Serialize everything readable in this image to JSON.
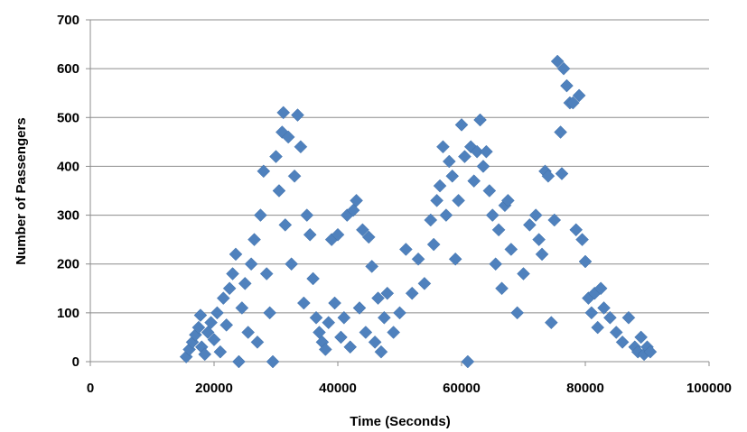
{
  "chart_data": {
    "type": "scatter",
    "title": "",
    "xlabel": "Time (Seconds)",
    "ylabel": "Number of Passengers",
    "xlim": [
      0,
      100000
    ],
    "ylim": [
      0,
      700
    ],
    "xticks": [
      0,
      20000,
      40000,
      60000,
      80000,
      100000
    ],
    "yticks": [
      0,
      100,
      200,
      300,
      400,
      500,
      600,
      700
    ],
    "xtick_labels": [
      "0",
      "20000",
      "40000",
      "60000",
      "80000",
      "100000"
    ],
    "ytick_labels": [
      "0",
      "100",
      "200",
      "300",
      "400",
      "500",
      "600",
      "700"
    ],
    "grid": "horizontal",
    "legend": "none",
    "marker": "diamond",
    "marker_color": "#4F81BD",
    "series": [
      {
        "points": [
          [
            15500,
            10
          ],
          [
            16000,
            25
          ],
          [
            16500,
            40
          ],
          [
            17000,
            55
          ],
          [
            17500,
            70
          ],
          [
            17800,
            95
          ],
          [
            18000,
            30
          ],
          [
            18500,
            15
          ],
          [
            19000,
            60
          ],
          [
            19500,
            80
          ],
          [
            20000,
            45
          ],
          [
            20500,
            100
          ],
          [
            21000,
            20
          ],
          [
            21500,
            130
          ],
          [
            22000,
            75
          ],
          [
            22500,
            150
          ],
          [
            23000,
            180
          ],
          [
            23500,
            220
          ],
          [
            24000,
            0
          ],
          [
            24500,
            110
          ],
          [
            25000,
            160
          ],
          [
            25500,
            60
          ],
          [
            26000,
            200
          ],
          [
            26500,
            250
          ],
          [
            27000,
            40
          ],
          [
            27500,
            300
          ],
          [
            28000,
            390
          ],
          [
            28500,
            180
          ],
          [
            29000,
            100
          ],
          [
            29500,
            0
          ],
          [
            30000,
            420
          ],
          [
            30500,
            350
          ],
          [
            31000,
            470
          ],
          [
            31200,
            510
          ],
          [
            31500,
            280
          ],
          [
            32000,
            460
          ],
          [
            32500,
            200
          ],
          [
            33000,
            380
          ],
          [
            33500,
            505
          ],
          [
            34000,
            440
          ],
          [
            34500,
            120
          ],
          [
            35000,
            300
          ],
          [
            35500,
            260
          ],
          [
            36000,
            170
          ],
          [
            36500,
            90
          ],
          [
            37000,
            60
          ],
          [
            37500,
            40
          ],
          [
            38000,
            25
          ],
          [
            38500,
            80
          ],
          [
            39000,
            250
          ],
          [
            39500,
            120
          ],
          [
            40000,
            260
          ],
          [
            40500,
            50
          ],
          [
            41000,
            90
          ],
          [
            41500,
            300
          ],
          [
            42000,
            30
          ],
          [
            42500,
            310
          ],
          [
            43000,
            330
          ],
          [
            43500,
            110
          ],
          [
            44000,
            270
          ],
          [
            44500,
            60
          ],
          [
            45000,
            255
          ],
          [
            45500,
            195
          ],
          [
            46000,
            40
          ],
          [
            46500,
            130
          ],
          [
            47000,
            20
          ],
          [
            47500,
            90
          ],
          [
            48000,
            140
          ],
          [
            49000,
            60
          ],
          [
            50000,
            100
          ],
          [
            51000,
            230
          ],
          [
            52000,
            140
          ],
          [
            53000,
            210
          ],
          [
            54000,
            160
          ],
          [
            55000,
            290
          ],
          [
            55500,
            240
          ],
          [
            56000,
            330
          ],
          [
            56500,
            360
          ],
          [
            57000,
            440
          ],
          [
            57500,
            300
          ],
          [
            58000,
            410
          ],
          [
            58500,
            380
          ],
          [
            59000,
            210
          ],
          [
            59500,
            330
          ],
          [
            60000,
            485
          ],
          [
            60500,
            420
          ],
          [
            61000,
            0
          ],
          [
            61500,
            440
          ],
          [
            62000,
            370
          ],
          [
            62500,
            430
          ],
          [
            63000,
            495
          ],
          [
            63500,
            400
          ],
          [
            64000,
            430
          ],
          [
            64500,
            350
          ],
          [
            65000,
            300
          ],
          [
            65500,
            200
          ],
          [
            66000,
            270
          ],
          [
            66500,
            150
          ],
          [
            67000,
            320
          ],
          [
            67500,
            330
          ],
          [
            68000,
            230
          ],
          [
            69000,
            100
          ],
          [
            70000,
            180
          ],
          [
            71000,
            280
          ],
          [
            72000,
            300
          ],
          [
            72500,
            250
          ],
          [
            73000,
            220
          ],
          [
            73500,
            390
          ],
          [
            74000,
            380
          ],
          [
            74500,
            80
          ],
          [
            75000,
            290
          ],
          [
            75500,
            615
          ],
          [
            76000,
            470
          ],
          [
            76200,
            385
          ],
          [
            76500,
            600
          ],
          [
            77000,
            565
          ],
          [
            77500,
            530
          ],
          [
            78000,
            530
          ],
          [
            78500,
            270
          ],
          [
            79000,
            545
          ],
          [
            79500,
            250
          ],
          [
            80000,
            205
          ],
          [
            80500,
            130
          ],
          [
            81000,
            100
          ],
          [
            81500,
            140
          ],
          [
            82000,
            70
          ],
          [
            82500,
            150
          ],
          [
            83000,
            110
          ],
          [
            84000,
            90
          ],
          [
            85000,
            60
          ],
          [
            86000,
            40
          ],
          [
            87000,
            90
          ],
          [
            88000,
            30
          ],
          [
            88500,
            20
          ],
          [
            89000,
            50
          ],
          [
            89500,
            15
          ],
          [
            90000,
            30
          ],
          [
            90500,
            20
          ]
        ]
      }
    ]
  }
}
